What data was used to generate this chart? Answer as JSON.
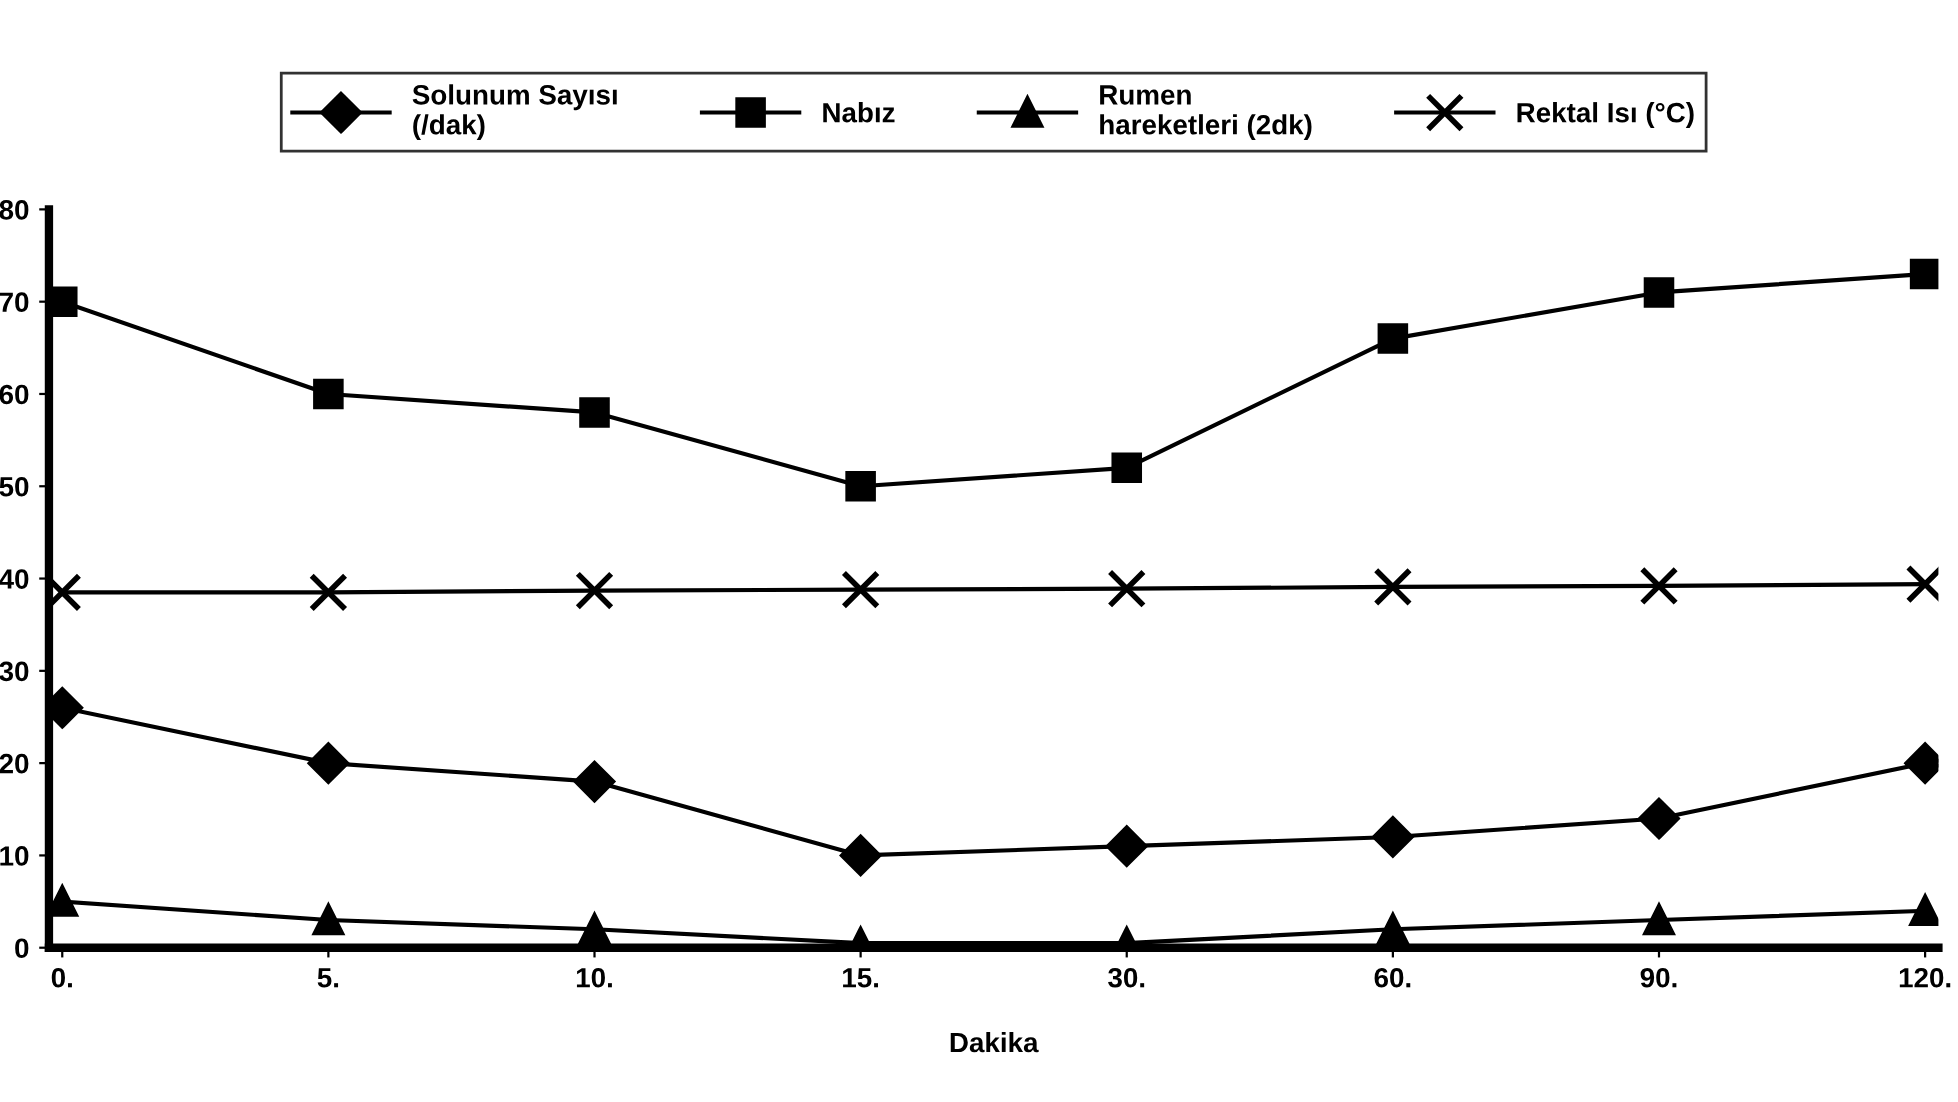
{
  "chart_data": {
    "type": "line",
    "xlabel": "Dakika",
    "categories": [
      "0.",
      "5.",
      "10.",
      "15.",
      "30.",
      "60.",
      "90.",
      "120."
    ],
    "ylim": [
      0,
      80
    ],
    "yticks": [
      0,
      10,
      20,
      30,
      40,
      50,
      60,
      70,
      80
    ],
    "grid": false,
    "legend": "top",
    "series": [
      {
        "name": "Solunum Sayısı\n(/dak)",
        "color": "#000000",
        "marker": "diamond",
        "values": [
          26,
          20,
          18,
          10,
          11,
          12,
          14,
          20
        ]
      },
      {
        "name": "Nabız",
        "color": "#000000",
        "marker": "square",
        "values": [
          70,
          60,
          58,
          50,
          52,
          66,
          71,
          73
        ]
      },
      {
        "name": "Rumen\nhareketleri (2dk)",
        "color": "#000000",
        "marker": "triangle",
        "values": [
          5,
          3,
          2,
          0.5,
          0.5,
          2,
          3,
          4
        ]
      },
      {
        "name": "Rektal Isı (°C)",
        "color": "#000000",
        "marker": "cross",
        "values": [
          38.5,
          38.5,
          38.7,
          38.8,
          38.9,
          39.1,
          39.2,
          39.4
        ]
      }
    ]
  }
}
